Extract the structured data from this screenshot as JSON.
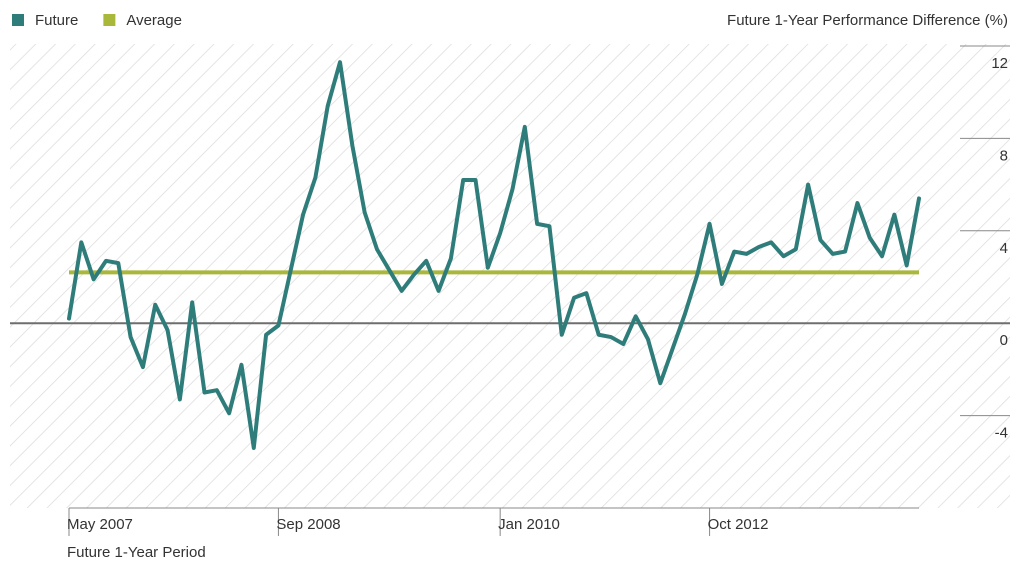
{
  "chart_data": {
    "type": "line",
    "y_axis_label": "Future 1-Year Performance Difference (%)",
    "x_axis_label": "Future 1-Year Period",
    "categories": [
      "May 2007",
      null,
      null,
      null,
      null,
      null,
      null,
      null,
      null,
      null,
      null,
      null,
      null,
      null,
      null,
      null,
      null,
      "Sep 2008",
      null,
      null,
      null,
      null,
      null,
      null,
      null,
      null,
      null,
      null,
      null,
      null,
      null,
      null,
      null,
      null,
      null,
      "Jan 2010",
      null,
      null,
      null,
      null,
      null,
      null,
      null,
      null,
      null,
      null,
      null,
      null,
      null,
      null,
      null,
      null,
      "Oct 2012",
      null,
      null,
      null,
      null,
      null,
      null,
      null,
      null,
      null,
      null,
      null,
      null,
      null,
      null,
      null,
      null,
      null
    ],
    "series": [
      {
        "name": "Future",
        "color": "#2f7d7a",
        "values": [
          0.2,
          3.5,
          1.9,
          2.7,
          2.6,
          -0.6,
          -1.9,
          0.8,
          -0.3,
          -3.3,
          0.9,
          -3.0,
          -2.9,
          -3.9,
          -1.8,
          -5.4,
          -0.5,
          -0.1,
          2.3,
          4.7,
          6.3,
          9.4,
          11.3,
          7.7,
          4.8,
          3.2,
          2.3,
          1.4,
          2.1,
          2.7,
          1.4,
          2.8,
          6.2,
          6.2,
          2.4,
          3.9,
          5.8,
          8.5,
          4.3,
          4.2,
          -0.5,
          1.1,
          1.3,
          -0.5,
          -0.6,
          -0.9,
          0.3,
          -0.7,
          -2.6,
          -1.1,
          0.4,
          2.1,
          4.3,
          1.7,
          3.1,
          3.0,
          3.3,
          3.5,
          2.9,
          3.2,
          6.0,
          3.6,
          3.0,
          3.1,
          5.2,
          3.7,
          2.9,
          4.7,
          2.5,
          5.4
        ]
      }
    ],
    "reference_lines": [
      {
        "name": "Average",
        "color": "#a9b83a",
        "value": 2.2
      }
    ],
    "zero_line": 0,
    "ylim": [
      -8,
      12
    ],
    "yticks": [
      -4,
      0,
      4,
      8,
      12
    ],
    "legend": "top-left"
  }
}
